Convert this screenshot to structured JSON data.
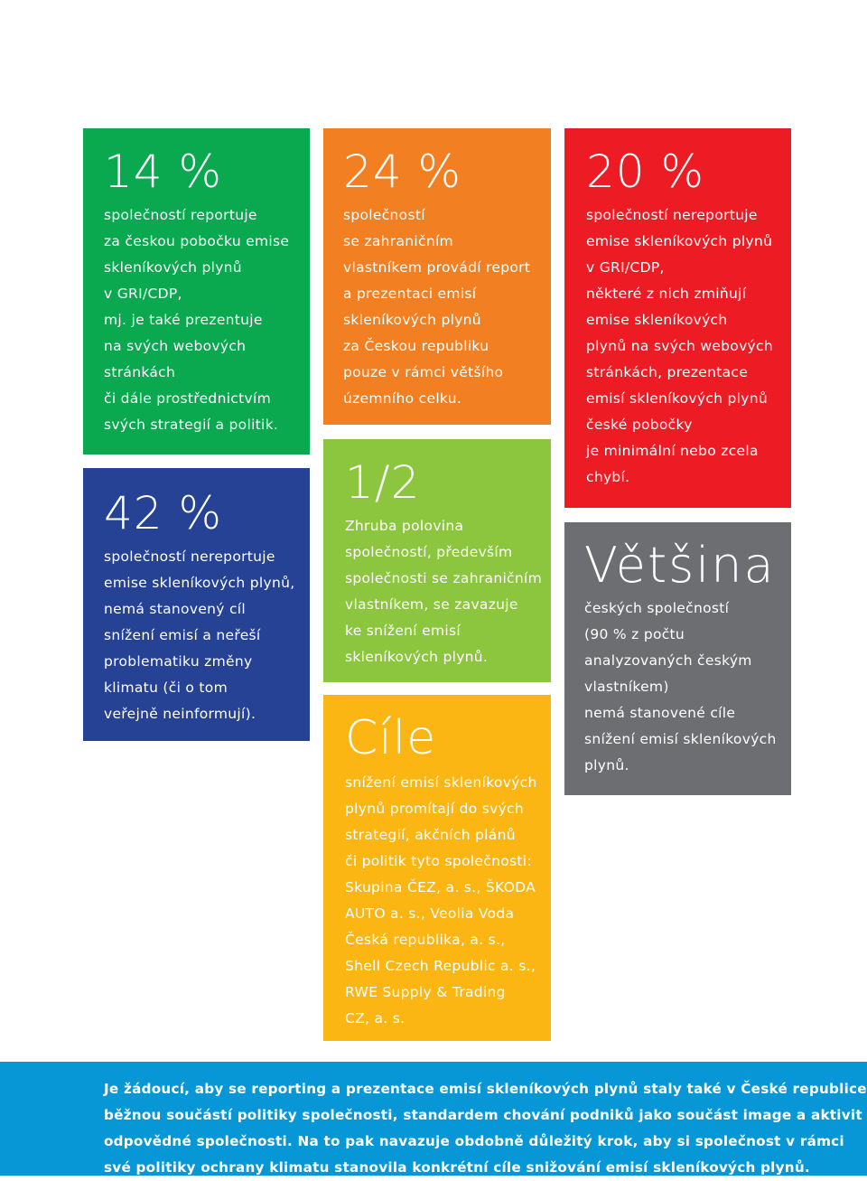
{
  "tiles": {
    "green": {
      "headline": "14 %",
      "color": "#0aa84f",
      "lines": [
        "společností reportuje",
        "za českou pobočku emise",
        "skleníkových plynů",
        "v GRI/CDP,",
        "mj. je také prezentuje",
        "na svých webových",
        "stránkách",
        "či dále prostřednictvím",
        "svých strategií a politik."
      ]
    },
    "blue": {
      "headline": "42 %",
      "color": "#254294",
      "lines": [
        "společností nereportuje",
        "emise skleníkových plynů,",
        "nemá stanovený cíl",
        "snížení emisí a neřeší",
        "problematiku změny",
        "klimatu (či o tom",
        "veřejně neinformují)."
      ]
    },
    "orange": {
      "headline": "24 %",
      "color": "#f27f22",
      "lines": [
        "společností",
        "se zahraničním",
        "vlastníkem provádí report",
        "a prezentaci emisí",
        "skleníkových plynů",
        "za Českou republiku",
        "pouze v rámci většího",
        "územního celku."
      ]
    },
    "lime": {
      "headline": "1/2",
      "color": "#8cc63f",
      "lines": [
        "Zhruba polovina",
        "společností, především",
        "společnosti se zahraničním",
        "vlastníkem, se zavazuje",
        "ke snížení emisí",
        "skleníkových plynů."
      ]
    },
    "yellow": {
      "headline": "Cíle",
      "color": "#fbb614",
      "lines": [
        "snížení emisí skleníkových",
        "plynů promítají do svých",
        "strategií, akčních plánů",
        "či politik tyto společnosti:",
        "Skupina ČEZ, a. s., ŠKODA",
        "AUTO a. s., Veolia Voda",
        "Česká republika, a. s.,",
        "Shell Czech Republic a. s.,",
        "RWE Supply & Trading",
        "CZ, a. s."
      ]
    },
    "red": {
      "headline": "20 %",
      "color": "#ed1c24",
      "lines": [
        "společností nereportuje",
        "emise skleníkových plynů",
        "v GRI/CDP,",
        "některé z nich zmiňují",
        "emise skleníkových",
        "plynů na svých webových",
        "stránkách, prezentace",
        "emisí skleníkových plynů",
        "české pobočky",
        "je minimální nebo zcela",
        "chybí."
      ]
    },
    "gray": {
      "headline": "Většina",
      "color": "#6d6e71",
      "lines": [
        "českých společností",
        "(90 % z počtu",
        "analyzovaných českým",
        "vlastníkem)",
        "nemá stanovené cíle",
        "snížení emisí skleníkových",
        "plynů."
      ]
    }
  },
  "banner": {
    "color": "#0796d6",
    "lines": [
      "Je žádoucí, aby se reporting a prezentace emisí skleníkových plynů staly také v České republice",
      "běžnou součástí politiky společnosti, standardem chování podniků jako součást image a aktivit",
      "odpovědné společnosti. Na to pak navazuje obdobně důležitý krok, aby si společnost v rámci",
      "své politiky ochrany klimatu stanovila konkrétní cíle snižování emisí skleníkových plynů."
    ]
  }
}
